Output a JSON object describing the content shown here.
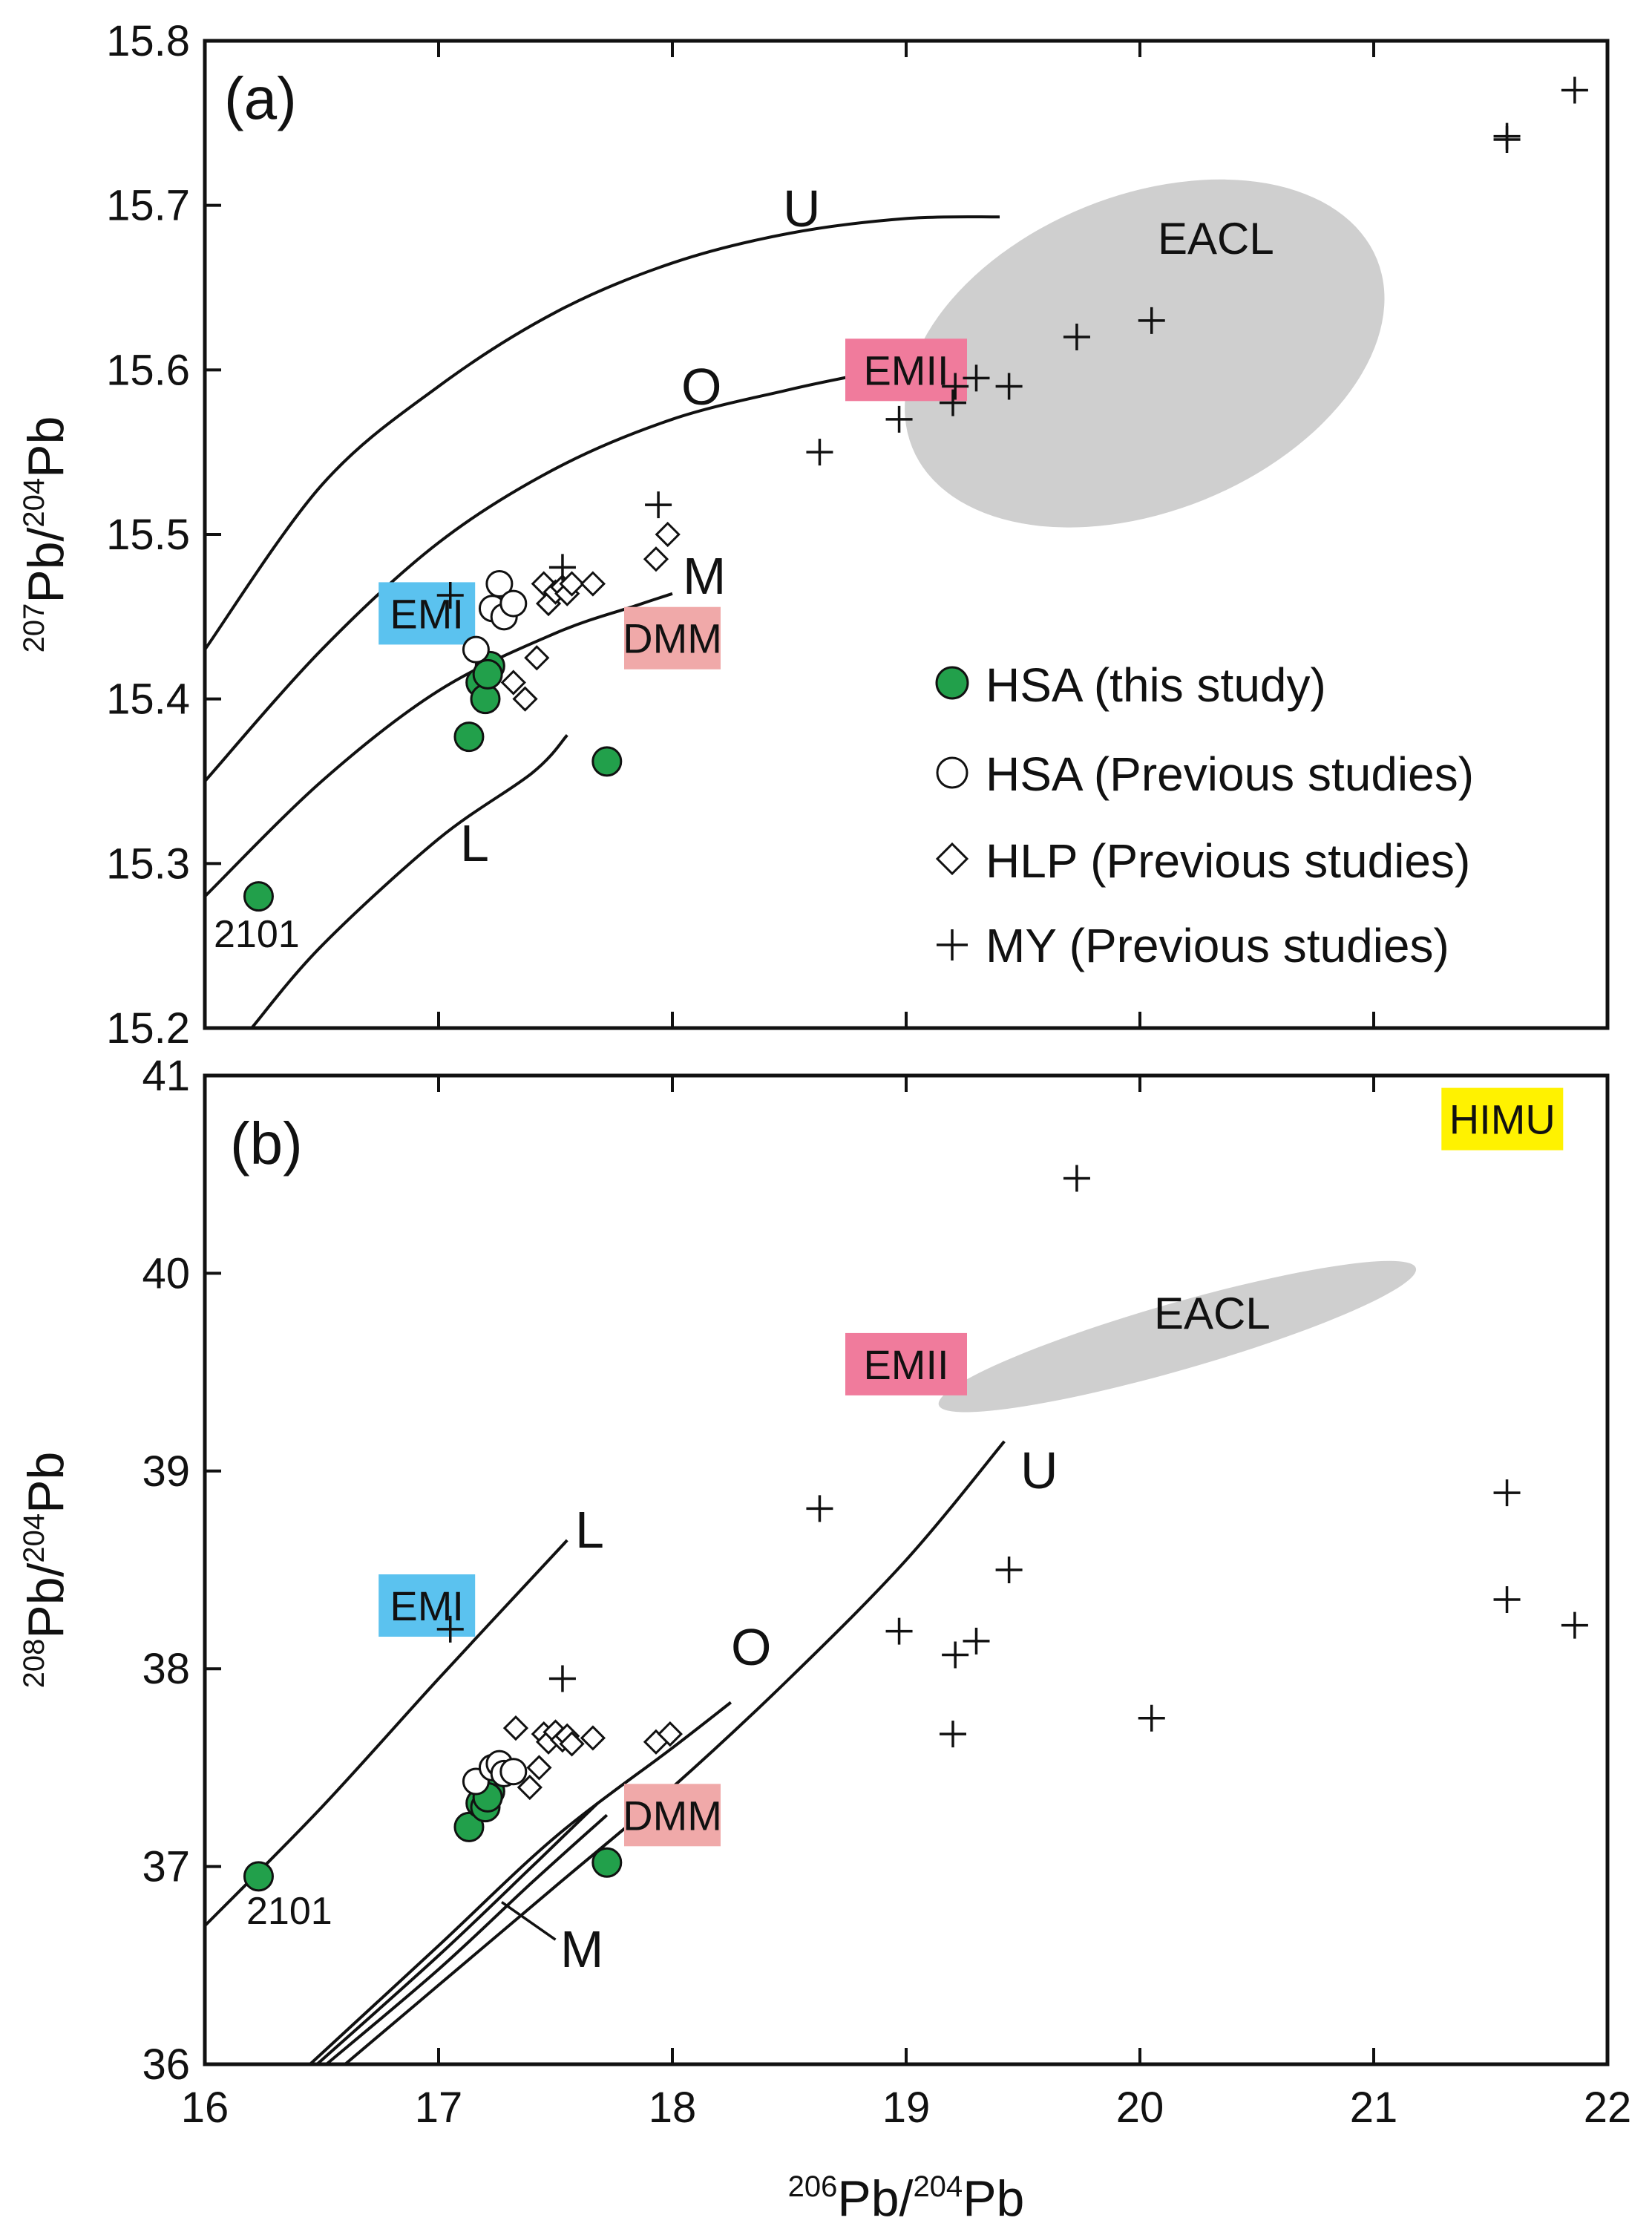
{
  "chart_data": [
    {
      "panel": "(a)",
      "type": "scatter",
      "xlabel": "206Pb/204Pb",
      "ylabel": "207Pb/204Pb",
      "xlim": [
        16,
        22
      ],
      "ylim": [
        15.2,
        15.8
      ],
      "x_ticks": [
        16,
        17,
        18,
        19,
        20,
        21,
        22
      ],
      "y_ticks": [
        15.2,
        15.3,
        15.4,
        15.5,
        15.6,
        15.7,
        15.8
      ],
      "y_tick_labels": [
        "15.2",
        "15.3",
        "15.4",
        "15.5",
        "15.6",
        "15.7",
        "15.8"
      ],
      "curves": [
        {
          "name": "U",
          "points": [
            [
              16,
              15.43
            ],
            [
              16.5,
              15.53
            ],
            [
              17,
              15.59
            ],
            [
              17.5,
              15.635
            ],
            [
              18,
              15.665
            ],
            [
              18.5,
              15.683
            ],
            [
              19,
              15.692
            ],
            [
              19.4,
              15.693
            ]
          ],
          "label_at": [
            18.55,
            15.714
          ]
        },
        {
          "name": "O",
          "points": [
            [
              16,
              15.35
            ],
            [
              16.5,
              15.43
            ],
            [
              17,
              15.495
            ],
            [
              17.5,
              15.54
            ],
            [
              18,
              15.57
            ],
            [
              18.5,
              15.588
            ],
            [
              18.8,
              15.597
            ]
          ],
          "label_at": [
            18.1,
            15.6
          ]
        },
        {
          "name": "M",
          "points": [
            [
              16,
              15.28
            ],
            [
              16.5,
              15.35
            ],
            [
              17,
              15.405
            ],
            [
              17.5,
              15.44
            ],
            [
              17.85,
              15.457
            ],
            [
              18,
              15.464
            ]
          ],
          "label_at": [
            18.13,
            15.483
          ]
        },
        {
          "name": "L",
          "points": [
            [
              16.2,
              15.2
            ],
            [
              16.5,
              15.25
            ],
            [
              17,
              15.315
            ],
            [
              17.4,
              15.355
            ],
            [
              17.55,
              15.378
            ]
          ],
          "label_at": [
            17.17,
            15.29
          ]
        }
      ],
      "ellipse": {
        "label": "EACL",
        "label_at": [
          20.35,
          15.677
        ],
        "cx": 20.02,
        "cy": 15.61,
        "rx_units": 1.95,
        "ry_units": 0.06,
        "angle": -22
      },
      "regions": [
        {
          "name": "EMI",
          "x": 16.95,
          "y": 15.452,
          "color": "#5bc2ef",
          "text_color": "#111111"
        },
        {
          "name": "EMII",
          "x": 19.0,
          "y": 15.6,
          "color": "#f07b9c",
          "text_color": "#111111"
        },
        {
          "name": "DMM",
          "x": 18.0,
          "y": 15.437,
          "color": "#f0a9a9",
          "text_color": "#111111"
        }
      ],
      "series": [
        {
          "name": "HSA (this study)",
          "marker": "filled-circle",
          "color": "#22a04b",
          "points": [
            [
              16.23,
              15.28
            ],
            [
              17.13,
              15.377
            ],
            [
              17.18,
              15.41
            ],
            [
              17.2,
              15.4
            ],
            [
              17.22,
              15.42
            ],
            [
              17.21,
              15.415
            ],
            [
              17.72,
              15.362
            ]
          ]
        },
        {
          "name": "HSA (Previous studies)",
          "marker": "open-circle",
          "color": "#111111",
          "points": [
            [
              17.16,
              15.43
            ],
            [
              17.23,
              15.455
            ],
            [
              17.26,
              15.47
            ],
            [
              17.28,
              15.45
            ],
            [
              17.32,
              15.458
            ]
          ]
        },
        {
          "name": "HLP (Previous studies)",
          "marker": "open-diamond",
          "color": "#111111",
          "points": [
            [
              17.32,
              15.41
            ],
            [
              17.37,
              15.4
            ],
            [
              17.42,
              15.425
            ],
            [
              17.45,
              15.47
            ],
            [
              17.47,
              15.458
            ],
            [
              17.5,
              15.465
            ],
            [
              17.53,
              15.468
            ],
            [
              17.55,
              15.464
            ],
            [
              17.57,
              15.47
            ],
            [
              17.66,
              15.47
            ],
            [
              17.93,
              15.485
            ],
            [
              17.98,
              15.5
            ]
          ]
        },
        {
          "name": "MY (Previous studies)",
          "marker": "plus",
          "color": "#111111",
          "points": [
            [
              17.05,
              15.463
            ],
            [
              17.53,
              15.48
            ],
            [
              17.94,
              15.518
            ],
            [
              18.63,
              15.55
            ],
            [
              18.97,
              15.57
            ],
            [
              19.2,
              15.58
            ],
            [
              19.21,
              15.59
            ],
            [
              19.3,
              15.595
            ],
            [
              19.44,
              15.59
            ],
            [
              19.73,
              15.62
            ],
            [
              20.05,
              15.63
            ],
            [
              21.57,
              15.74
            ],
            [
              21.57,
              15.742
            ],
            [
              21.86,
              15.77
            ]
          ]
        }
      ],
      "annotations": [
        {
          "text": "2101",
          "x": 16.1,
          "y": 15.255
        }
      ],
      "legend": {
        "position": "bottom-right",
        "entries": [
          "HSA (this study)",
          "HSA (Previous studies)",
          "HLP (Previous studies)",
          "MY (Previous studies)"
        ]
      }
    },
    {
      "panel": "(b)",
      "type": "scatter",
      "xlabel": "206Pb/204Pb",
      "ylabel": "208Pb/204Pb",
      "xlim": [
        16,
        22
      ],
      "ylim": [
        36,
        41
      ],
      "x_ticks": [
        16,
        17,
        18,
        19,
        20,
        21,
        22
      ],
      "x_tick_labels": [
        "16",
        "17",
        "18",
        "19",
        "20",
        "21",
        "22"
      ],
      "y_ticks": [
        36,
        37,
        38,
        39,
        40,
        41
      ],
      "y_tick_labels": [
        "36",
        "37",
        "38",
        "39",
        "40",
        "41"
      ],
      "curves": [
        {
          "name": "L",
          "points": [
            [
              16.0,
              36.7
            ],
            [
              16.5,
              37.3
            ],
            [
              17.0,
              37.95
            ],
            [
              17.55,
              38.65
            ]
          ],
          "label_at": [
            17.67,
            38.66
          ]
        },
        {
          "name": "O",
          "points": [
            [
              16.45,
              36.0
            ],
            [
              17.0,
              36.6
            ],
            [
              17.5,
              37.15
            ],
            [
              18.0,
              37.6
            ],
            [
              18.25,
              37.83
            ]
          ],
          "label_at": [
            18.33,
            37.92
          ]
        },
        {
          "name": "U",
          "points": [
            [
              16.6,
              36.0
            ],
            [
              17.0,
              36.4
            ],
            [
              17.5,
              36.9
            ],
            [
              18.0,
              37.4
            ],
            [
              18.5,
              37.95
            ],
            [
              19.0,
              38.55
            ],
            [
              19.42,
              39.15
            ]
          ],
          "label_at": [
            19.58,
            38.9
          ]
        },
        {
          "name": "M",
          "points": [
            [
              16.48,
              36.0
            ],
            [
              17.0,
              36.55
            ],
            [
              17.4,
              37.0
            ],
            [
              17.68,
              37.32
            ]
          ],
          "label_at": [
            17.63,
            36.48
          ],
          "leader": [
            [
              17.27,
              36.82
            ],
            [
              17.5,
              36.63
            ]
          ]
        },
        {
          "name": "M2",
          "points": [
            [
              16.52,
              36.0
            ],
            [
              17.0,
              36.48
            ],
            [
              17.4,
              36.92
            ],
            [
              17.72,
              37.26
            ]
          ]
        }
      ],
      "ellipse": {
        "label": "EACL",
        "label_at": [
          20.35,
          39.88
        ],
        "cx": 20.16,
        "cy": 39.68,
        "rx_units": 1.93,
        "ry_units": 0.47,
        "angle": -16
      },
      "regions": [
        {
          "name": "HIMU",
          "x": 21.55,
          "y": 40.78,
          "color": "#fff200",
          "text_color": "#111111"
        },
        {
          "name": "EMII",
          "x": 19.0,
          "y": 39.54,
          "color": "#f07b9c",
          "text_color": "#111111"
        },
        {
          "name": "EMI",
          "x": 16.95,
          "y": 38.32,
          "color": "#5bc2ef",
          "text_color": "#111111"
        },
        {
          "name": "DMM",
          "x": 18.0,
          "y": 37.26,
          "color": "#f0a9a9",
          "text_color": "#111111"
        }
      ],
      "series": [
        {
          "name": "HSA (this study)",
          "marker": "filled-circle",
          "color": "#22a04b",
          "points": [
            [
              16.23,
              36.95
            ],
            [
              17.13,
              37.2
            ],
            [
              17.18,
              37.32
            ],
            [
              17.2,
              37.3
            ],
            [
              17.22,
              37.38
            ],
            [
              17.21,
              37.35
            ],
            [
              17.72,
              37.02
            ]
          ]
        },
        {
          "name": "HSA (Previous studies)",
          "marker": "open-circle",
          "color": "#111111",
          "points": [
            [
              17.16,
              37.43
            ],
            [
              17.23,
              37.5
            ],
            [
              17.26,
              37.52
            ],
            [
              17.28,
              37.47
            ],
            [
              17.32,
              37.48
            ]
          ]
        },
        {
          "name": "HLP (Previous studies)",
          "marker": "open-diamond",
          "color": "#111111",
          "points": [
            [
              17.33,
              37.7
            ],
            [
              17.39,
              37.4
            ],
            [
              17.43,
              37.5
            ],
            [
              17.45,
              37.67
            ],
            [
              17.47,
              37.63
            ],
            [
              17.5,
              37.68
            ],
            [
              17.53,
              37.64
            ],
            [
              17.55,
              37.66
            ],
            [
              17.57,
              37.62
            ],
            [
              17.66,
              37.65
            ],
            [
              17.93,
              37.63
            ],
            [
              17.99,
              37.67
            ]
          ]
        },
        {
          "name": "MY (Previous studies)",
          "marker": "plus",
          "color": "#111111",
          "points": [
            [
              17.05,
              38.2
            ],
            [
              17.53,
              37.95
            ],
            [
              18.63,
              38.81
            ],
            [
              18.97,
              38.19
            ],
            [
              19.2,
              37.67
            ],
            [
              19.21,
              38.07
            ],
            [
              19.3,
              38.14
            ],
            [
              19.44,
              38.5
            ],
            [
              19.73,
              40.48
            ],
            [
              20.05,
              37.75
            ],
            [
              21.57,
              38.89
            ],
            [
              21.57,
              38.35
            ],
            [
              21.86,
              38.22
            ]
          ]
        }
      ],
      "annotations": [
        {
          "text": "2101",
          "x": 16.15,
          "y": 36.76
        }
      ]
    }
  ],
  "text": {
    "panel_a": "(a)",
    "panel_b": "(b)",
    "eacl_a": "EACL",
    "eacl_b": "EACL",
    "curve_U_a": "U",
    "curve_O_a": "O",
    "curve_M_a": "M",
    "curve_L_a": "L",
    "curve_L_b": "L",
    "curve_O_b": "O",
    "curve_U_b": "U",
    "curve_M_b": "M",
    "sample_a": "2101",
    "sample_b": "2101",
    "legend_1": "HSA (this study)",
    "legend_2": "HSA (Previous studies)",
    "legend_3": "HLP (Previous studies)",
    "legend_4": "MY (Previous studies)",
    "ylabel_a_sup1": "207",
    "ylabel_a_mid": "Pb/",
    "ylabel_a_sup2": "204",
    "ylabel_a_end": "Pb",
    "ylabel_b_sup1": "208",
    "ylabel_b_mid": "Pb/",
    "ylabel_b_sup2": "204",
    "ylabel_b_end": "Pb",
    "xlabel_sup1": "206",
    "xlabel_mid": "Pb/",
    "xlabel_sup2": "204",
    "xlabel_end": "Pb"
  },
  "colors": {
    "ellipse": "#cfcfcf",
    "hsa_this": "#22a04b",
    "axis": "#111111"
  }
}
